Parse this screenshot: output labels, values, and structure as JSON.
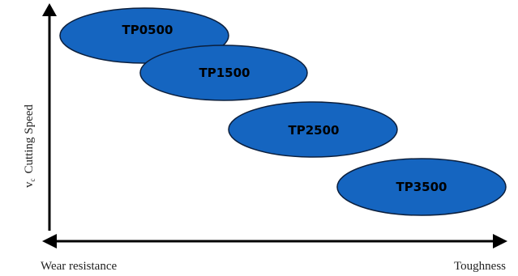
{
  "diagram": {
    "y_axis": {
      "prefix": "v",
      "subscript": "c",
      "label": "Cutting Speed"
    },
    "x_axis": {
      "left_label": "Wear resistance",
      "right_label": "Toughness"
    },
    "grades": [
      {
        "name": "TP0500"
      },
      {
        "name": "TP1500"
      },
      {
        "name": "TP2500"
      },
      {
        "name": "TP3500"
      }
    ],
    "colors": {
      "ellipse_fill": "#1565c0",
      "ellipse_stroke": "#0b1f3d",
      "axis": "#000000"
    }
  }
}
